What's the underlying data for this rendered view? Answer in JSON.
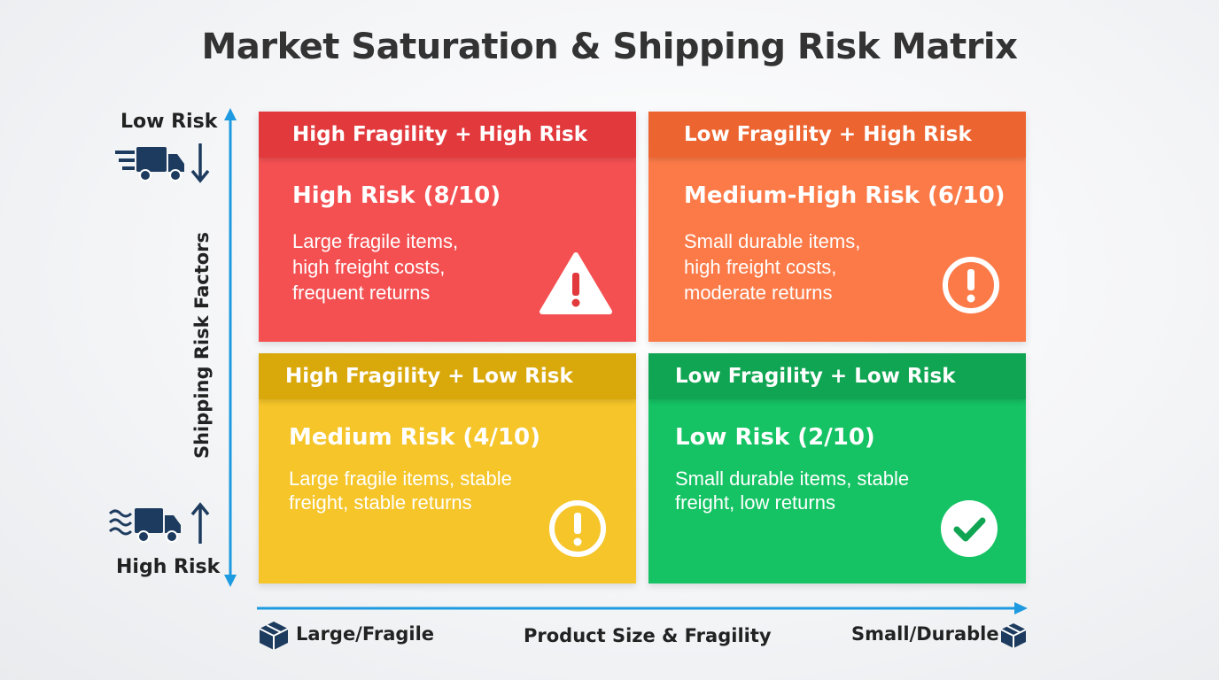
{
  "title": "Market Saturation & Shipping Risk Matrix",
  "y_axis": {
    "label": "Shipping Risk Factors",
    "top_label": "Low Risk",
    "bottom_label": "High Risk"
  },
  "x_axis": {
    "label": "Product Size & Fragility",
    "left_label": "Large/Fragile",
    "right_label": "Small/Durable"
  },
  "quadrants": [
    {
      "header": "High Fragility + High Risk",
      "risk": "High Risk (8/10)",
      "desc": [
        "Large fragile items,",
        "high freight costs,",
        "frequent returns"
      ],
      "icon": "warning-triangle-icon",
      "color": "#f45052"
    },
    {
      "header": "Low Fragility + High Risk",
      "risk": "Medium-High Risk (6/10)",
      "desc": [
        "Small durable items,",
        "high freight costs,",
        "moderate returns"
      ],
      "icon": "exclamation-circle-icon",
      "color": "#fb7a48"
    },
    {
      "header": "High Fragility + Low Risk",
      "risk": "Medium Risk (4/10)",
      "desc": [
        "Large fragile items, stable",
        "freight, stable returns"
      ],
      "icon": "exclamation-circle-icon",
      "color": "#f5c52a"
    },
    {
      "header": "Low Fragility + Low Risk",
      "risk": "Low Risk (2/10)",
      "desc": [
        "Small durable items, stable",
        "freight, low returns"
      ],
      "icon": "checkmark-circle-icon",
      "color": "#15c364"
    }
  ],
  "colors": {
    "axis": "#1e9be0",
    "icon_navy": "#1d3b5e"
  }
}
